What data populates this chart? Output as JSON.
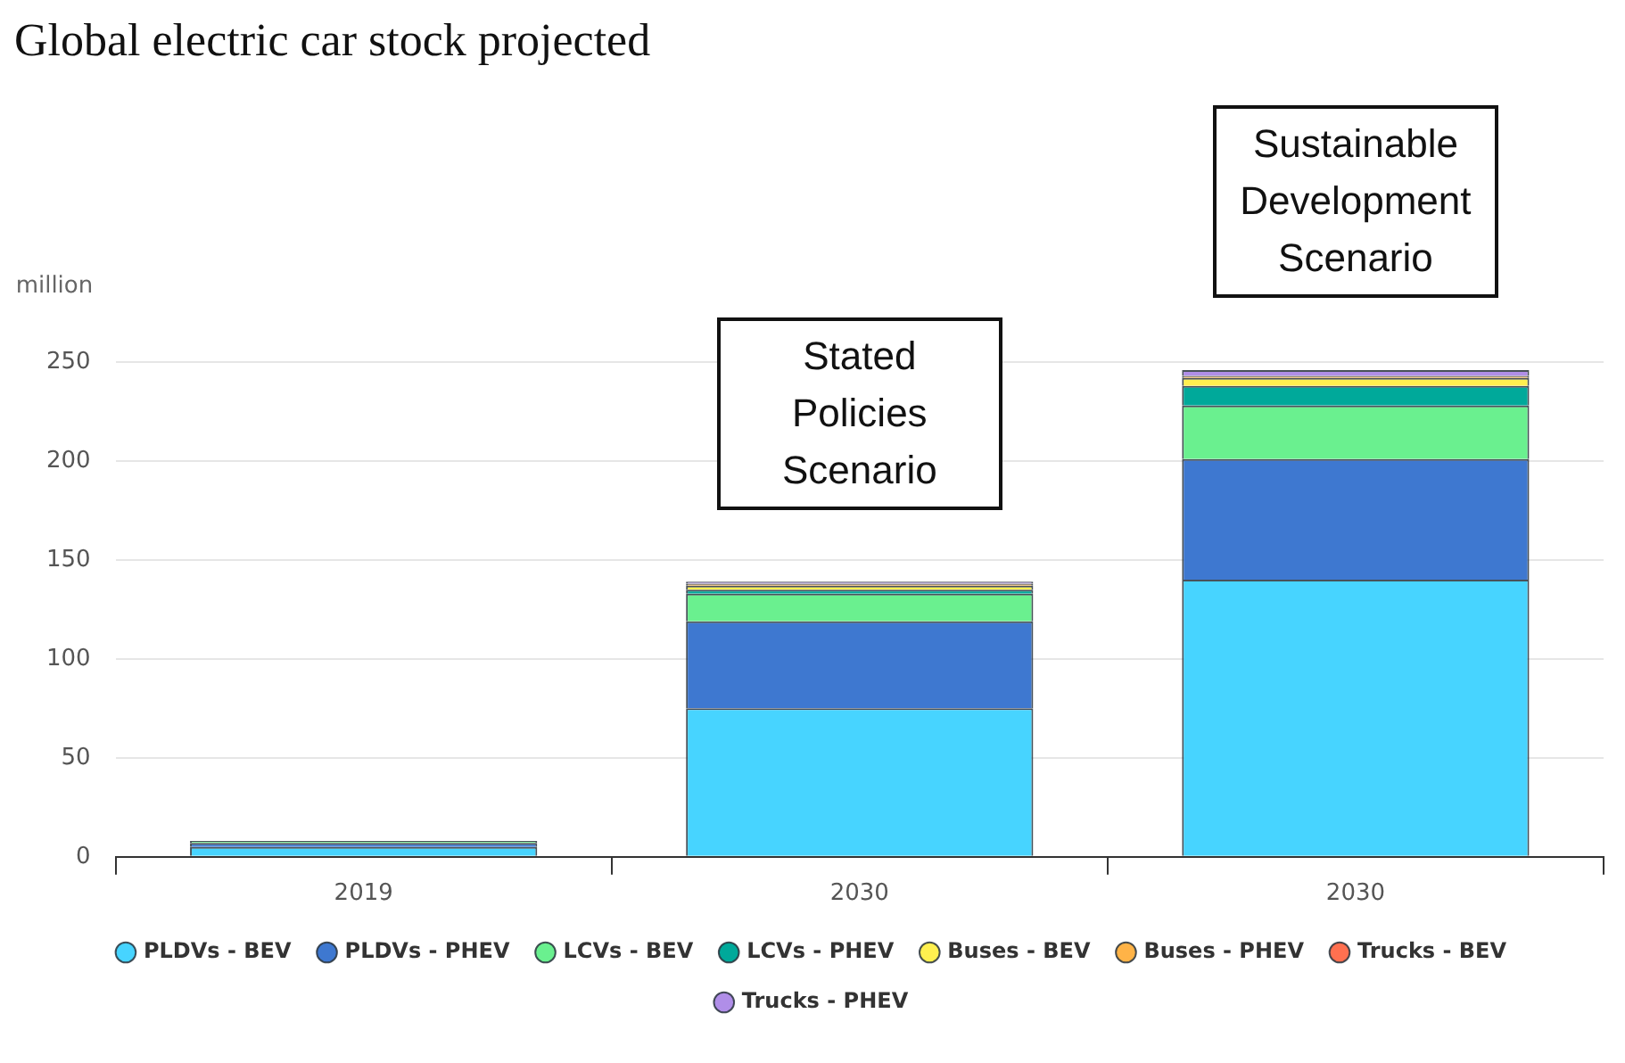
{
  "chart_data": {
    "type": "bar",
    "title": "Global electric car stock projected",
    "ylabel": "million",
    "categories": [
      "2019",
      "2030",
      "2030"
    ],
    "stacked": true,
    "series": [
      {
        "name": "PLDVs - BEV",
        "color": "#47d4ff",
        "values": [
          5,
          75,
          140
        ]
      },
      {
        "name": "PLDVs - PHEV",
        "color": "#3e78d0",
        "values": [
          2,
          44,
          61
        ]
      },
      {
        "name": "LCVs - BEV",
        "color": "#6af08f",
        "values": [
          1,
          14,
          27
        ]
      },
      {
        "name": "LCVs - PHEV",
        "color": "#00a99a",
        "values": [
          0,
          2,
          10
        ]
      },
      {
        "name": "Buses - BEV",
        "color": "#fff04f",
        "values": [
          0,
          2,
          4
        ]
      },
      {
        "name": "Buses - PHEV",
        "color": "#ffb347",
        "values": [
          0,
          1,
          1
        ]
      },
      {
        "name": "Trucks - BEV",
        "color": "#ff7050",
        "values": [
          0,
          0,
          0
        ]
      },
      {
        "name": "Trucks - PHEV",
        "color": "#b08ee8",
        "values": [
          0,
          1,
          3
        ]
      }
    ],
    "ylim": [
      0,
      250
    ],
    "yticks": [
      0,
      50,
      100,
      150,
      200,
      250
    ],
    "grid": "y",
    "legend": "bottom",
    "annotations": [
      "Stated Policies Scenario",
      "Sustainable Development Scenario"
    ]
  }
}
